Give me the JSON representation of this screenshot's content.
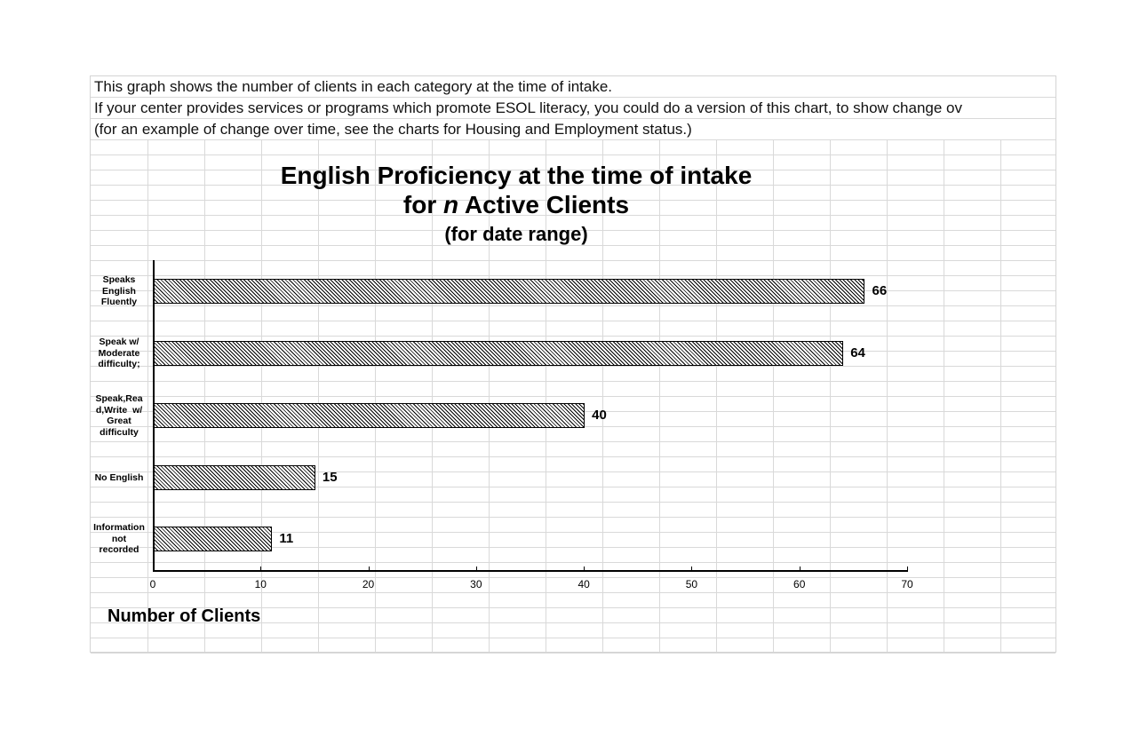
{
  "notes": [
    "This graph shows the number of clients in each category at the time of intake.",
    "If your center provides services or programs which promote ESOL literacy, you could do a version of this chart, to show change ov",
    "(for an example of change over time, see the charts for Housing and Employment status.)"
  ],
  "chart_data": {
    "type": "bar",
    "orientation": "horizontal",
    "title": "English Proficiency at the time of intake",
    "title_line2_prefix": "for ",
    "title_line2_italic": "n",
    "title_line2_suffix": " Active Clients",
    "subtitle": "(for date range)",
    "xlabel": "Number of Clients",
    "ylabel": "",
    "categories": [
      "Speaks English Fluently",
      "Speak w/ Moderate difficulty;",
      "Speak,Read,Write w/ Great difficulty",
      "No English",
      "Information not recorded"
    ],
    "category_label_lines": [
      [
        "Speaks",
        "English",
        "Fluently"
      ],
      [
        "Speak w/",
        "Moderate",
        "difficulty;"
      ],
      [
        "Speak,Rea",
        "d,Write  w/",
        "Great",
        "difficulty"
      ],
      [
        "No English"
      ],
      [
        "Information",
        "not",
        "recorded"
      ]
    ],
    "values": [
      66,
      64,
      40,
      15,
      11
    ],
    "xlim": [
      0,
      70
    ],
    "xticks": [
      "0",
      "10",
      "20",
      "30",
      "40",
      "50",
      "60",
      "70"
    ],
    "data_labels": [
      "66",
      "64",
      "40",
      "15",
      "11"
    ],
    "fill": "diagonal hatch (black on white)",
    "grid": false,
    "legend": "none"
  }
}
